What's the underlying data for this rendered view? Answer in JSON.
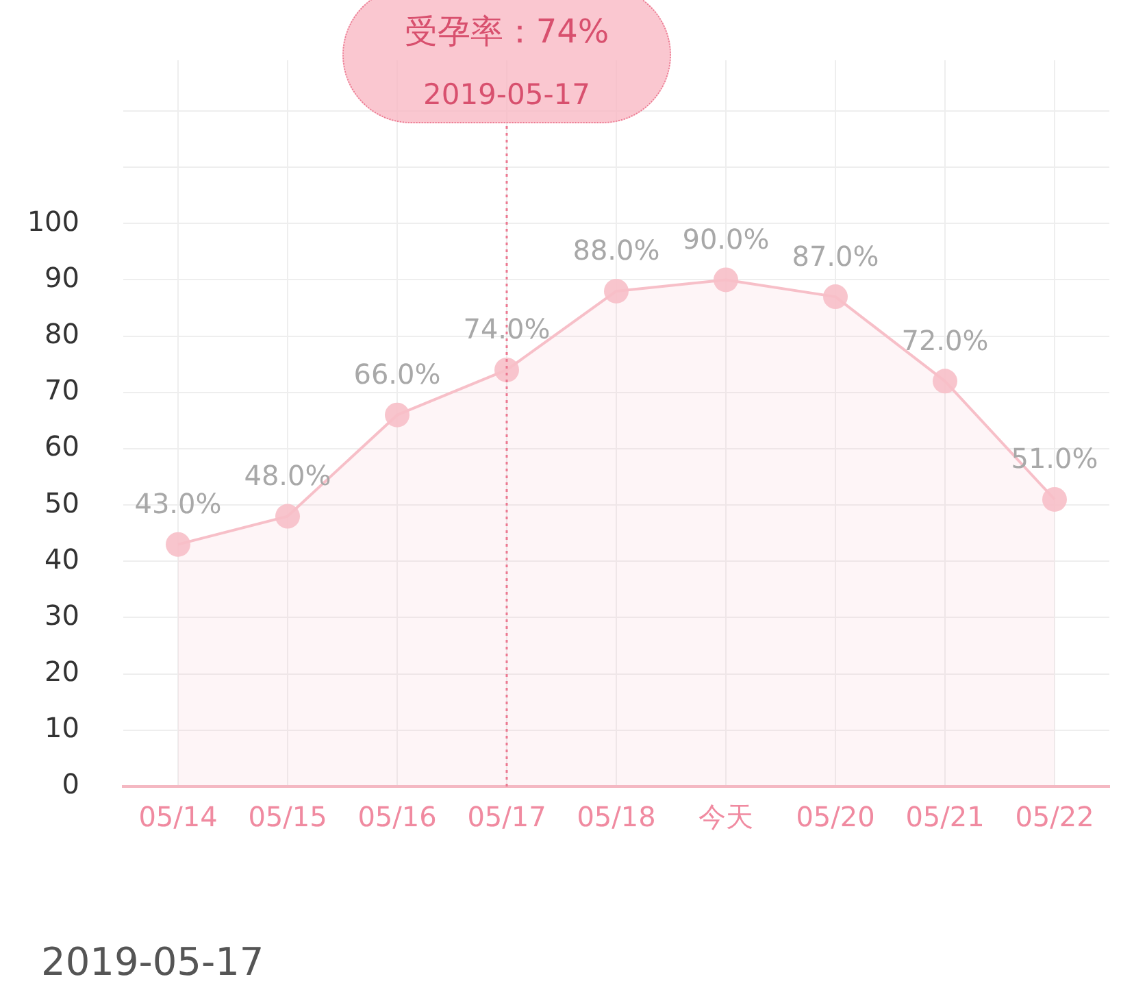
{
  "chart_data": {
    "type": "area",
    "categories": [
      "05/14",
      "05/15",
      "05/16",
      "05/17",
      "05/18",
      "今天",
      "05/20",
      "05/21",
      "05/22"
    ],
    "series": [
      {
        "color": "#f7bfc8",
        "values": [
          43,
          48,
          66,
          74,
          88,
          90,
          87,
          72,
          51
        ],
        "value_labels": [
          "43.0%",
          "48.0%",
          "66.0%",
          "74.0%",
          "88.0%",
          "90.0%",
          "87.0%",
          "72.0%",
          "51.0%"
        ]
      }
    ],
    "ylim": [
      0,
      129
    ],
    "yticks": [
      0,
      10,
      20,
      30,
      40,
      50,
      60,
      70,
      80,
      90,
      100,
      {
        "value": 110,
        "label": null
      },
      {
        "value": 120,
        "label": null
      }
    ],
    "grid": true,
    "legend": false,
    "marker": "circle",
    "line_style": "solid",
    "ref_lines": [
      {
        "axis": "x",
        "value": "05/17",
        "color": "#ec7a92",
        "line_style": "dotted"
      }
    ],
    "annotations": [
      "受孕率：74%",
      "2019-05-17",
      "2019-05-17"
    ]
  }
}
